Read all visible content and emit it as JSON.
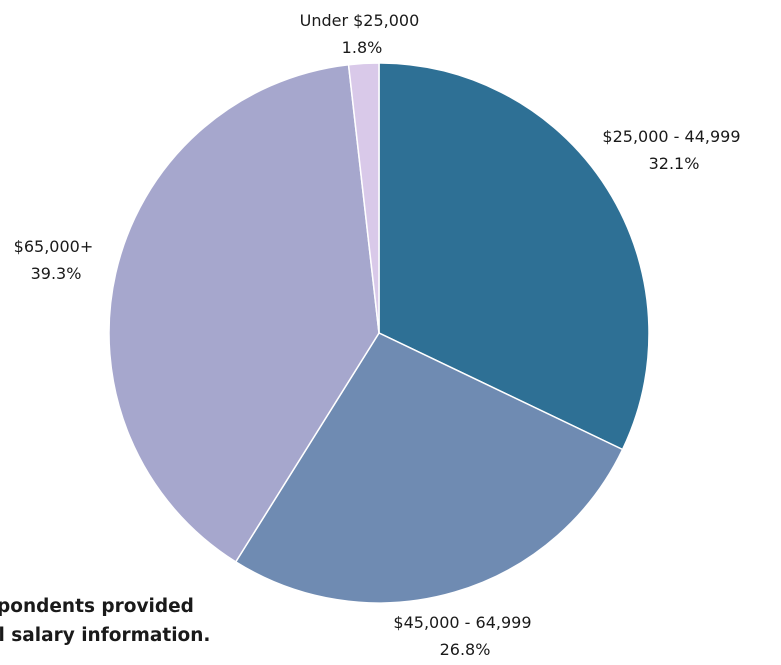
{
  "chart_data": {
    "type": "pie",
    "title": "",
    "start_angle_deg": 0,
    "direction": "clockwise",
    "slices": [
      {
        "label": "$25,000 - 44,999",
        "value": 32.1,
        "value_label": "32.1%",
        "color": "#2e7095"
      },
      {
        "label": "$45,000 - 64,999",
        "value": 26.8,
        "value_label": "26.8%",
        "color": "#6f8bb2"
      },
      {
        "label": "$65,000+",
        "value": 39.3,
        "value_label": "39.3%",
        "color": "#a6a7cd"
      },
      {
        "label": "Under $25,000",
        "value": 1.8,
        "value_label": "1.8%",
        "color": "#d9c9e9"
      }
    ]
  },
  "footnote": {
    "line1": "spondents provided",
    "line2": "al salary information."
  }
}
